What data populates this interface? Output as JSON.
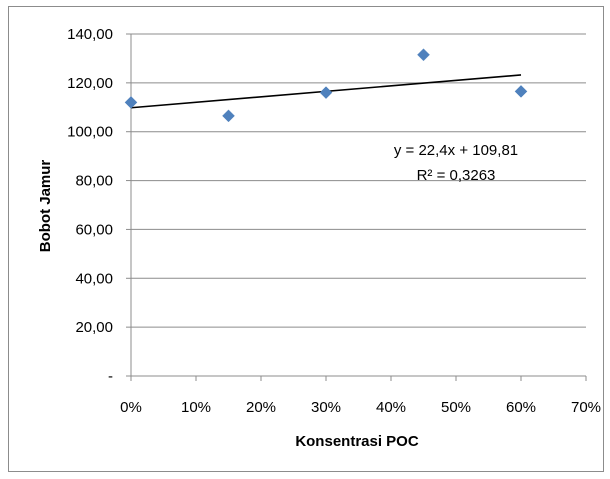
{
  "chart_data": {
    "type": "scatter",
    "xlabel": "Konsentrasi POC",
    "ylabel": "Bobot Jamur",
    "x_ticks": [
      "0%",
      "10%",
      "20%",
      "30%",
      "40%",
      "50%",
      "60%",
      "70%"
    ],
    "y_ticks": [
      "-",
      "20,00",
      "40,00",
      "60,00",
      "80,00",
      "100,00",
      "120,00",
      "140,00"
    ],
    "xlim": [
      0,
      0.7
    ],
    "ylim": [
      0,
      140
    ],
    "grid": "horizontal",
    "points": [
      {
        "x": 0.0,
        "y": 112.0
      },
      {
        "x": 0.15,
        "y": 106.5
      },
      {
        "x": 0.3,
        "y": 116.0
      },
      {
        "x": 0.45,
        "y": 131.5
      },
      {
        "x": 0.6,
        "y": 116.5
      }
    ],
    "trendline": {
      "slope": 22.4,
      "intercept": 109.81,
      "x_range": [
        0,
        0.6
      ],
      "equation": "y = 22,4x + 109,81",
      "r_squared": "R² = 0,3263"
    },
    "marker_color": "#4f81bd",
    "line_color": "#000000",
    "grid_color": "#8c8c8c"
  }
}
